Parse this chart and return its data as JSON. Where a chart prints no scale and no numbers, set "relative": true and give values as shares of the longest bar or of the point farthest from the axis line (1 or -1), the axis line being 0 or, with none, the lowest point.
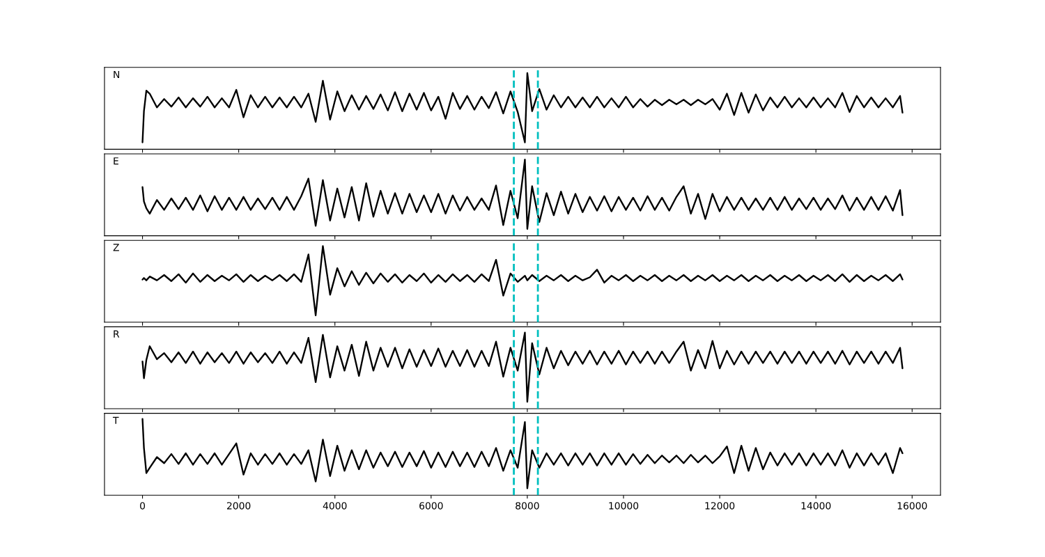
{
  "chart_data": [
    {
      "type": "line",
      "title": "N",
      "relative": true,
      "color": "#000000",
      "xlim": [
        -790,
        16590
      ],
      "xticks": [
        0,
        2000,
        4000,
        6000,
        8000,
        10000,
        12000,
        14000,
        16000
      ],
      "tick_labels": false,
      "ref_lines": [
        {
          "axis": "x",
          "value": 7720,
          "color": "#00bfbf",
          "line_style": "dashed"
        },
        {
          "axis": "x",
          "value": 8220,
          "color": "#00bfbf",
          "line_style": "dashed"
        }
      ],
      "x": [
        0,
        30,
        80,
        150,
        300,
        450,
        600,
        750,
        900,
        1050,
        1200,
        1350,
        1500,
        1650,
        1800,
        1950,
        2100,
        2250,
        2400,
        2550,
        2700,
        2850,
        3000,
        3150,
        3300,
        3450,
        3600,
        3750,
        3900,
        4050,
        4200,
        4350,
        4500,
        4650,
        4800,
        4950,
        5100,
        5250,
        5400,
        5550,
        5700,
        5850,
        6000,
        6150,
        6300,
        6450,
        6600,
        6750,
        6900,
        7050,
        7200,
        7350,
        7500,
        7650,
        7800,
        7950,
        8000,
        8100,
        8250,
        8400,
        8550,
        8700,
        8850,
        9000,
        9150,
        9300,
        9450,
        9600,
        9750,
        9900,
        10050,
        10200,
        10350,
        10500,
        10650,
        10800,
        10950,
        11100,
        11250,
        11400,
        11550,
        11700,
        11850,
        12000,
        12150,
        12300,
        12450,
        12600,
        12750,
        12900,
        13050,
        13200,
        13350,
        13500,
        13650,
        13800,
        13950,
        14100,
        14250,
        14400,
        14550,
        14700,
        14850,
        15000,
        15150,
        15300,
        15450,
        15600,
        15750,
        15800
      ],
      "values": [
        0.09,
        0.5,
        0.77,
        0.73,
        0.55,
        0.66,
        0.56,
        0.68,
        0.55,
        0.67,
        0.56,
        0.69,
        0.55,
        0.67,
        0.55,
        0.78,
        0.42,
        0.71,
        0.55,
        0.69,
        0.55,
        0.68,
        0.55,
        0.69,
        0.55,
        0.73,
        0.36,
        0.9,
        0.39,
        0.76,
        0.5,
        0.71,
        0.52,
        0.7,
        0.53,
        0.72,
        0.51,
        0.75,
        0.5,
        0.73,
        0.52,
        0.74,
        0.51,
        0.69,
        0.4,
        0.74,
        0.53,
        0.7,
        0.52,
        0.69,
        0.54,
        0.75,
        0.47,
        0.76,
        0.49,
        0.09,
        1.0,
        0.5,
        0.79,
        0.52,
        0.71,
        0.55,
        0.69,
        0.55,
        0.68,
        0.55,
        0.69,
        0.55,
        0.67,
        0.55,
        0.69,
        0.55,
        0.66,
        0.56,
        0.65,
        0.58,
        0.65,
        0.59,
        0.65,
        0.58,
        0.65,
        0.59,
        0.66,
        0.52,
        0.73,
        0.45,
        0.74,
        0.48,
        0.72,
        0.51,
        0.68,
        0.55,
        0.69,
        0.55,
        0.67,
        0.55,
        0.68,
        0.55,
        0.67,
        0.55,
        0.74,
        0.49,
        0.7,
        0.55,
        0.68,
        0.55,
        0.67,
        0.55,
        0.7,
        0.48
      ]
    },
    {
      "type": "line",
      "title": "E",
      "relative": true,
      "color": "#000000",
      "xlim": [
        -790,
        16590
      ],
      "xticks": [
        0,
        2000,
        4000,
        6000,
        8000,
        10000,
        12000,
        14000,
        16000
      ],
      "tick_labels": false,
      "ref_lines": [
        {
          "axis": "x",
          "value": 7720,
          "color": "#00bfbf",
          "line_style": "dashed"
        },
        {
          "axis": "x",
          "value": 8220,
          "color": "#00bfbf",
          "line_style": "dashed"
        }
      ],
      "x": [
        0,
        30,
        80,
        150,
        300,
        450,
        600,
        750,
        900,
        1050,
        1200,
        1350,
        1500,
        1650,
        1800,
        1950,
        2100,
        2250,
        2400,
        2550,
        2700,
        2850,
        3000,
        3150,
        3300,
        3450,
        3600,
        3750,
        3900,
        4050,
        4200,
        4350,
        4500,
        4650,
        4800,
        4950,
        5100,
        5250,
        5400,
        5550,
        5700,
        5850,
        6000,
        6150,
        6300,
        6450,
        6600,
        6750,
        6900,
        7050,
        7200,
        7350,
        7500,
        7650,
        7800,
        7950,
        8000,
        8100,
        8250,
        8400,
        8550,
        8700,
        8850,
        9000,
        9150,
        9300,
        9450,
        9600,
        9750,
        9900,
        10050,
        10200,
        10350,
        10500,
        10650,
        10800,
        10950,
        11100,
        11250,
        11400,
        11550,
        11700,
        11850,
        12000,
        12150,
        12300,
        12450,
        12600,
        12750,
        12900,
        13050,
        13200,
        13350,
        13500,
        13650,
        13800,
        13950,
        14100,
        14250,
        14400,
        14550,
        14700,
        14850,
        15000,
        15150,
        15300,
        15450,
        15600,
        15750,
        15800
      ],
      "values": [
        0.64,
        0.45,
        0.36,
        0.29,
        0.47,
        0.34,
        0.49,
        0.35,
        0.5,
        0.34,
        0.53,
        0.32,
        0.52,
        0.34,
        0.5,
        0.34,
        0.51,
        0.34,
        0.49,
        0.35,
        0.5,
        0.34,
        0.51,
        0.34,
        0.52,
        0.75,
        0.13,
        0.73,
        0.2,
        0.62,
        0.24,
        0.64,
        0.2,
        0.69,
        0.25,
        0.59,
        0.29,
        0.56,
        0.29,
        0.55,
        0.31,
        0.53,
        0.31,
        0.55,
        0.29,
        0.53,
        0.33,
        0.51,
        0.34,
        0.49,
        0.34,
        0.66,
        0.14,
        0.59,
        0.23,
        1.0,
        0.09,
        0.65,
        0.18,
        0.56,
        0.27,
        0.58,
        0.29,
        0.55,
        0.31,
        0.51,
        0.33,
        0.52,
        0.32,
        0.51,
        0.34,
        0.5,
        0.33,
        0.52,
        0.34,
        0.5,
        0.33,
        0.51,
        0.65,
        0.29,
        0.55,
        0.22,
        0.55,
        0.32,
        0.51,
        0.34,
        0.5,
        0.34,
        0.49,
        0.34,
        0.5,
        0.34,
        0.51,
        0.34,
        0.49,
        0.35,
        0.5,
        0.34,
        0.49,
        0.35,
        0.53,
        0.33,
        0.5,
        0.34,
        0.51,
        0.34,
        0.52,
        0.33,
        0.6,
        0.27
      ]
    },
    {
      "type": "line",
      "title": "Z",
      "relative": true,
      "color": "#000000",
      "xlim": [
        -790,
        16590
      ],
      "xticks": [
        0,
        2000,
        4000,
        6000,
        8000,
        10000,
        12000,
        14000,
        16000
      ],
      "tick_labels": false,
      "ref_lines": [
        {
          "axis": "x",
          "value": 7720,
          "color": "#00bfbf",
          "line_style": "dashed"
        },
        {
          "axis": "x",
          "value": 8220,
          "color": "#00bfbf",
          "line_style": "dashed"
        }
      ],
      "x": [
        0,
        30,
        80,
        150,
        300,
        450,
        600,
        750,
        900,
        1050,
        1200,
        1350,
        1500,
        1650,
        1800,
        1950,
        2100,
        2250,
        2400,
        2550,
        2700,
        2850,
        3000,
        3150,
        3300,
        3450,
        3600,
        3750,
        3900,
        4050,
        4200,
        4350,
        4500,
        4650,
        4800,
        4950,
        5100,
        5250,
        5400,
        5550,
        5700,
        5850,
        6000,
        6150,
        6300,
        6450,
        6600,
        6750,
        6900,
        7050,
        7200,
        7350,
        7500,
        7650,
        7800,
        7950,
        8000,
        8100,
        8250,
        8400,
        8550,
        8700,
        8850,
        9000,
        9150,
        9300,
        9450,
        9600,
        9750,
        9900,
        10050,
        10200,
        10350,
        10500,
        10650,
        10800,
        10950,
        11100,
        11250,
        11400,
        11550,
        11700,
        11850,
        12000,
        12150,
        12300,
        12450,
        12600,
        12750,
        12900,
        13050,
        13200,
        13350,
        13500,
        13650,
        13800,
        13950,
        14100,
        14250,
        14400,
        14550,
        14700,
        14850,
        15000,
        15150,
        15300,
        15450,
        15600,
        15750,
        15800
      ],
      "values": [
        0.56,
        0.58,
        0.55,
        0.6,
        0.55,
        0.62,
        0.54,
        0.63,
        0.52,
        0.64,
        0.53,
        0.62,
        0.54,
        0.61,
        0.55,
        0.63,
        0.53,
        0.62,
        0.54,
        0.61,
        0.55,
        0.62,
        0.54,
        0.63,
        0.53,
        0.89,
        0.09,
        1.0,
        0.36,
        0.71,
        0.47,
        0.67,
        0.49,
        0.65,
        0.51,
        0.64,
        0.53,
        0.63,
        0.52,
        0.62,
        0.54,
        0.64,
        0.52,
        0.62,
        0.53,
        0.63,
        0.54,
        0.62,
        0.53,
        0.63,
        0.54,
        0.82,
        0.35,
        0.64,
        0.53,
        0.61,
        0.55,
        0.62,
        0.54,
        0.61,
        0.55,
        0.62,
        0.54,
        0.61,
        0.55,
        0.59,
        0.69,
        0.52,
        0.61,
        0.55,
        0.62,
        0.54,
        0.61,
        0.55,
        0.62,
        0.54,
        0.61,
        0.55,
        0.62,
        0.54,
        0.61,
        0.55,
        0.62,
        0.54,
        0.61,
        0.55,
        0.62,
        0.54,
        0.61,
        0.55,
        0.62,
        0.54,
        0.61,
        0.55,
        0.62,
        0.54,
        0.61,
        0.55,
        0.62,
        0.54,
        0.63,
        0.53,
        0.62,
        0.54,
        0.61,
        0.55,
        0.62,
        0.54,
        0.63,
        0.56
      ]
    },
    {
      "type": "line",
      "title": "R",
      "relative": true,
      "color": "#000000",
      "xlim": [
        -790,
        16590
      ],
      "xticks": [
        0,
        2000,
        4000,
        6000,
        8000,
        10000,
        12000,
        14000,
        16000
      ],
      "tick_labels": false,
      "ref_lines": [
        {
          "axis": "x",
          "value": 7720,
          "color": "#00bfbf",
          "line_style": "dashed"
        },
        {
          "axis": "x",
          "value": 8220,
          "color": "#00bfbf",
          "line_style": "dashed"
        }
      ],
      "x": [
        0,
        30,
        80,
        150,
        300,
        450,
        600,
        750,
        900,
        1050,
        1200,
        1350,
        1500,
        1650,
        1800,
        1950,
        2100,
        2250,
        2400,
        2550,
        2700,
        2850,
        3000,
        3150,
        3300,
        3450,
        3600,
        3750,
        3900,
        4050,
        4200,
        4350,
        4500,
        4650,
        4800,
        4950,
        5100,
        5250,
        5400,
        5550,
        5700,
        5850,
        6000,
        6150,
        6300,
        6450,
        6600,
        6750,
        6900,
        7050,
        7200,
        7350,
        7500,
        7650,
        7800,
        7950,
        8000,
        8100,
        8250,
        8400,
        8550,
        8700,
        8850,
        9000,
        9150,
        9300,
        9450,
        9600,
        9750,
        9900,
        10050,
        10200,
        10350,
        10500,
        10650,
        10800,
        10950,
        11100,
        11250,
        11400,
        11550,
        11700,
        11850,
        12000,
        12150,
        12300,
        12450,
        12600,
        12750,
        12900,
        13050,
        13200,
        13350,
        13500,
        13650,
        13800,
        13950,
        14100,
        14250,
        14400,
        14550,
        14700,
        14850,
        15000,
        15150,
        15300,
        15450,
        15600,
        15750,
        15800
      ],
      "values": [
        0.62,
        0.4,
        0.64,
        0.82,
        0.65,
        0.73,
        0.61,
        0.74,
        0.6,
        0.75,
        0.59,
        0.74,
        0.61,
        0.73,
        0.6,
        0.75,
        0.59,
        0.74,
        0.61,
        0.73,
        0.6,
        0.75,
        0.59,
        0.74,
        0.6,
        0.93,
        0.35,
        0.97,
        0.41,
        0.82,
        0.5,
        0.84,
        0.43,
        0.88,
        0.5,
        0.8,
        0.55,
        0.8,
        0.53,
        0.78,
        0.55,
        0.77,
        0.56,
        0.79,
        0.55,
        0.76,
        0.56,
        0.77,
        0.55,
        0.76,
        0.56,
        0.88,
        0.42,
        0.8,
        0.5,
        1.0,
        0.09,
        0.86,
        0.45,
        0.8,
        0.53,
        0.76,
        0.57,
        0.75,
        0.59,
        0.76,
        0.58,
        0.75,
        0.59,
        0.76,
        0.58,
        0.75,
        0.6,
        0.75,
        0.59,
        0.75,
        0.6,
        0.75,
        0.88,
        0.5,
        0.77,
        0.53,
        0.89,
        0.53,
        0.76,
        0.58,
        0.75,
        0.59,
        0.75,
        0.6,
        0.75,
        0.59,
        0.75,
        0.6,
        0.75,
        0.59,
        0.75,
        0.6,
        0.75,
        0.59,
        0.76,
        0.58,
        0.75,
        0.6,
        0.75,
        0.59,
        0.75,
        0.6,
        0.8,
        0.53
      ]
    },
    {
      "type": "line",
      "title": "T",
      "relative": true,
      "color": "#000000",
      "xlim": [
        -790,
        16590
      ],
      "xticks": [
        0,
        2000,
        4000,
        6000,
        8000,
        10000,
        12000,
        14000,
        16000
      ],
      "tick_labels": "x",
      "ref_lines": [
        {
          "axis": "x",
          "value": 7720,
          "color": "#00bfbf",
          "line_style": "dashed"
        },
        {
          "axis": "x",
          "value": 8220,
          "color": "#00bfbf",
          "line_style": "dashed"
        }
      ],
      "x": [
        0,
        30,
        80,
        150,
        300,
        450,
        600,
        750,
        900,
        1050,
        1200,
        1350,
        1500,
        1650,
        1800,
        1950,
        2100,
        2250,
        2400,
        2550,
        2700,
        2850,
        3000,
        3150,
        3300,
        3450,
        3600,
        3750,
        3900,
        4050,
        4200,
        4350,
        4500,
        4650,
        4800,
        4950,
        5100,
        5250,
        5400,
        5550,
        5700,
        5850,
        6000,
        6150,
        6300,
        6450,
        6600,
        6750,
        6900,
        7050,
        7200,
        7350,
        7500,
        7650,
        7800,
        7950,
        8000,
        8100,
        8250,
        8400,
        8550,
        8700,
        8850,
        9000,
        9150,
        9300,
        9450,
        9600,
        9750,
        9900,
        10050,
        10200,
        10350,
        10500,
        10650,
        10800,
        10950,
        11100,
        11250,
        11400,
        11550,
        11700,
        11850,
        12000,
        12150,
        12300,
        12450,
        12600,
        12750,
        12900,
        13050,
        13200,
        13350,
        13500,
        13650,
        13800,
        13950,
        14100,
        14250,
        14400,
        14550,
        14700,
        14850,
        15000,
        15150,
        15300,
        15450,
        15600,
        15750,
        15800
      ],
      "values": [
        1.0,
        0.62,
        0.29,
        0.36,
        0.5,
        0.42,
        0.54,
        0.41,
        0.55,
        0.4,
        0.54,
        0.41,
        0.55,
        0.4,
        0.54,
        0.68,
        0.27,
        0.55,
        0.4,
        0.54,
        0.41,
        0.55,
        0.4,
        0.54,
        0.41,
        0.59,
        0.18,
        0.73,
        0.25,
        0.65,
        0.32,
        0.59,
        0.34,
        0.59,
        0.36,
        0.56,
        0.38,
        0.57,
        0.37,
        0.56,
        0.38,
        0.58,
        0.36,
        0.56,
        0.37,
        0.57,
        0.38,
        0.56,
        0.37,
        0.57,
        0.38,
        0.62,
        0.32,
        0.59,
        0.36,
        0.96,
        0.09,
        0.59,
        0.36,
        0.55,
        0.4,
        0.55,
        0.39,
        0.55,
        0.4,
        0.55,
        0.39,
        0.55,
        0.4,
        0.55,
        0.4,
        0.54,
        0.41,
        0.53,
        0.42,
        0.52,
        0.43,
        0.52,
        0.42,
        0.53,
        0.43,
        0.52,
        0.42,
        0.51,
        0.64,
        0.29,
        0.65,
        0.32,
        0.62,
        0.34,
        0.56,
        0.39,
        0.55,
        0.4,
        0.55,
        0.39,
        0.55,
        0.4,
        0.55,
        0.39,
        0.59,
        0.36,
        0.55,
        0.39,
        0.55,
        0.4,
        0.55,
        0.29,
        0.62,
        0.55
      ]
    }
  ]
}
